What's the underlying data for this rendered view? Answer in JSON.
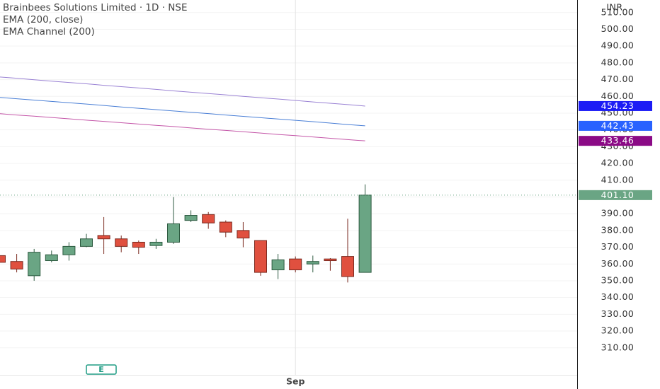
{
  "chart_data": {
    "type": "candlestick",
    "title": "Brainbees Solutions Limited · 1D · NSE",
    "currency": "INR",
    "categories": [
      null,
      null,
      null,
      null,
      null,
      null,
      null,
      null,
      null,
      null,
      null,
      null,
      null,
      null,
      null,
      null,
      null,
      "Sep",
      null,
      null,
      null,
      null
    ],
    "candles": {
      "open": [
        365,
        361.5,
        353,
        362,
        365.5,
        370.5,
        377,
        375,
        373,
        371,
        373,
        386,
        389.5,
        385,
        380,
        374,
        356.5,
        363,
        360,
        363,
        364.5,
        355
      ],
      "high": [
        366,
        366,
        369,
        368,
        373,
        378,
        388,
        377,
        374,
        375,
        400,
        392,
        391,
        386,
        385,
        374,
        366,
        364.5,
        365,
        363.5,
        387,
        407.5
      ],
      "low": [
        360,
        355,
        350,
        361,
        362,
        370,
        366,
        367,
        366,
        369,
        372,
        385,
        381,
        376,
        370,
        353,
        351,
        355,
        355,
        356,
        349,
        355
      ],
      "close": [
        361,
        357,
        367,
        365.5,
        370.5,
        375,
        375,
        370.5,
        370,
        373,
        384,
        389,
        384.5,
        379,
        375.5,
        355,
        362.5,
        356.5,
        361.5,
        362,
        352.5,
        401.1
      ],
      "up_color": "#6aa584",
      "down_color": "#e0503f"
    },
    "price_line": {
      "value": 401.1,
      "label": "401.10",
      "color": "#6aa584"
    },
    "indicators": [
      {
        "name": "EMA (200, close)",
        "lines": [
          {
            "color": "#4a7fd6",
            "label_color": "#2962ff",
            "values": [
              459.4,
              458.6,
              457.8,
              457.0,
              456.2,
              455.4,
              454.6,
              453.7,
              452.9,
              452.1,
              451.3,
              450.5,
              449.7,
              448.9,
              448.1,
              447.3,
              446.5,
              445.7,
              444.9,
              444.1,
              443.2,
              442.43
            ]
          }
        ]
      },
      {
        "name": "EMA Channel (200)",
        "lines": [
          {
            "color": "#9a82d4",
            "label_color": "#1c1cf5",
            "values": [
              471.6,
              470.8,
              469.9,
              469.1,
              468.3,
              467.5,
              466.6,
              465.8,
              465.0,
              464.2,
              463.3,
              462.5,
              461.7,
              460.9,
              460.0,
              459.2,
              458.4,
              457.6,
              456.7,
              455.9,
              455.1,
              454.23
            ]
          },
          {
            "color": "#c456a8",
            "label_color": "#8b0a86",
            "values": [
              449.7,
              448.9,
              448.2,
              447.4,
              446.6,
              445.8,
              445.1,
              444.3,
              443.5,
              442.7,
              442.0,
              441.2,
              440.4,
              439.7,
              438.9,
              438.1,
              437.3,
              436.6,
              435.8,
              435.0,
              434.2,
              433.46
            ]
          }
        ]
      }
    ],
    "ylim": [
      305,
      517.5
    ],
    "yticks": [
      {
        "value": 310,
        "label": "310.00"
      },
      {
        "value": 320,
        "label": "320.00"
      },
      {
        "value": 330,
        "label": "330.00"
      },
      {
        "value": 340,
        "label": "340.00"
      },
      {
        "value": 350,
        "label": "350.00"
      },
      {
        "value": 360,
        "label": "360.00"
      },
      {
        "value": 370,
        "label": "370.00"
      },
      {
        "value": 380,
        "label": "380.00"
      },
      {
        "value": 390,
        "label": "390.00"
      },
      {
        "value": 400,
        "label": "400.00"
      },
      {
        "value": 410,
        "label": "410.00"
      },
      {
        "value": 420,
        "label": "420.00"
      },
      {
        "value": 430,
        "label": "430.00"
      },
      {
        "value": 440,
        "label": "440.00"
      },
      {
        "value": 450,
        "label": "450.00"
      },
      {
        "value": 460,
        "label": "460.00"
      },
      {
        "value": 470,
        "label": "470.00"
      },
      {
        "value": 480,
        "label": "480.00"
      },
      {
        "value": 490,
        "label": "490.00"
      },
      {
        "value": 500,
        "label": "500.00"
      },
      {
        "value": 510,
        "label": "510.00"
      }
    ],
    "grid": true
  }
}
